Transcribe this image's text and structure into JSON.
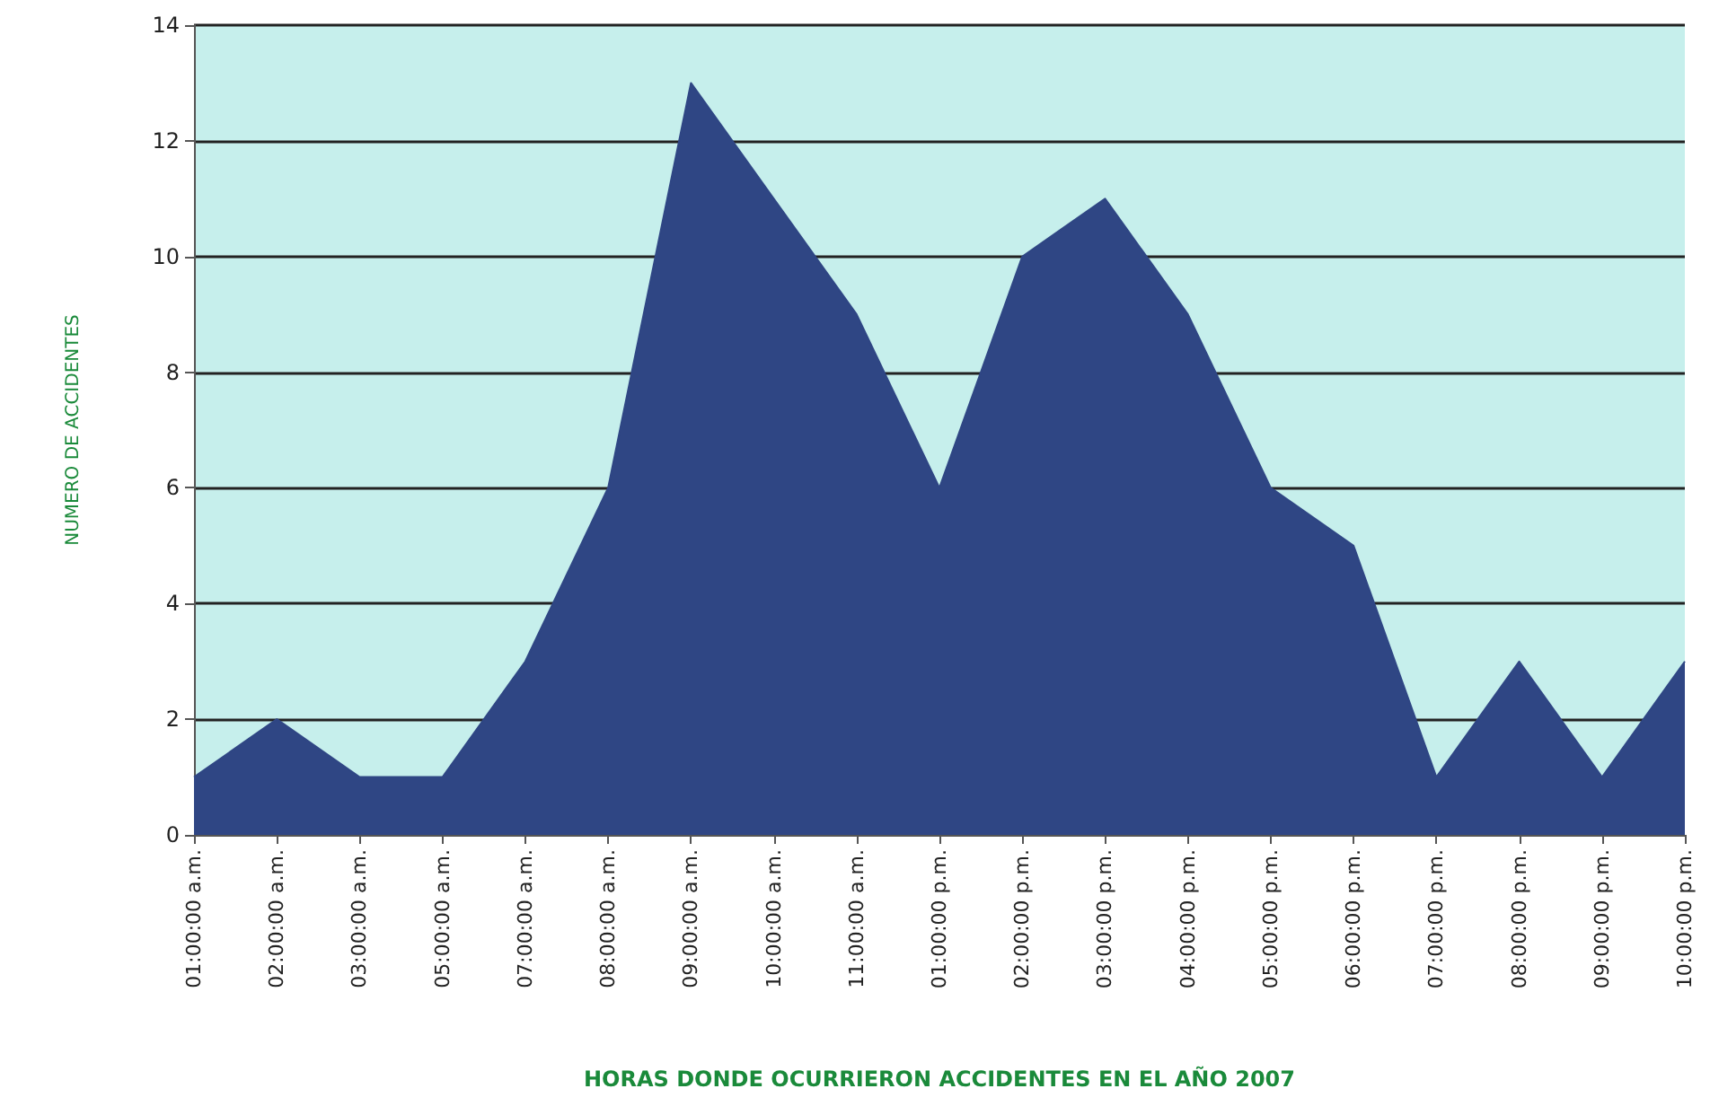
{
  "chart_data": {
    "type": "area",
    "xlabel": "HORAS DONDE OCURRIERON ACCIDENTES EN EL AÑO 2007",
    "ylabel": "NUMERO DE ACCIDENTES",
    "categories": [
      "01:00:00 a.m.",
      "02:00:00 a.m.",
      "03:00:00 a.m.",
      "05:00:00 a.m.",
      "07:00:00 a.m.",
      "08:00:00 a.m.",
      "09:00:00 a.m.",
      "10:00:00 a.m.",
      "11:00:00 a.m.",
      "01:00:00 p.m.",
      "02:00:00 p.m.",
      "03:00:00 p.m.",
      "04:00:00 p.m.",
      "05:00:00 p.m.",
      "06:00:00 p.m.",
      "07:00:00 p.m.",
      "08:00:00 p.m.",
      "09:00:00 p.m.",
      "10:00:00 p.m."
    ],
    "series": [
      {
        "color": "#2f4684",
        "values": [
          1,
          2,
          1,
          1,
          3,
          6,
          13,
          11,
          9,
          6,
          10,
          11,
          9,
          6,
          5,
          1,
          3,
          1,
          3
        ]
      }
    ],
    "ylim": [
      0,
      14
    ],
    "yticks": [
      0,
      2,
      4,
      6,
      8,
      10,
      12,
      14
    ],
    "grid": "y",
    "marker": "none"
  }
}
